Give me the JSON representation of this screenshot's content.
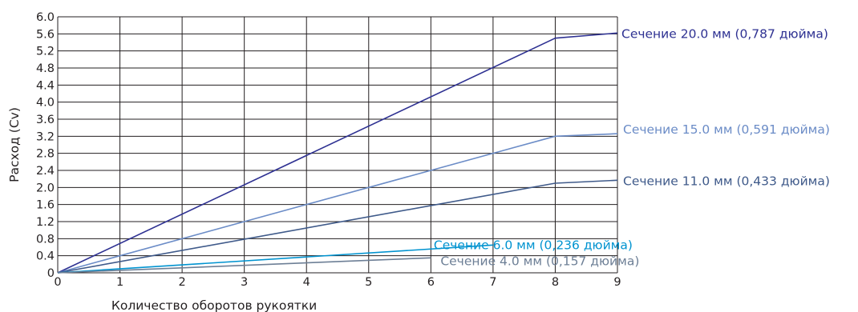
{
  "chart_data": {
    "type": "line",
    "title": "",
    "xlabel": "Количество оборотов рукоятки",
    "ylabel": "Расход (Cv)",
    "xlim": [
      0,
      9
    ],
    "ylim": [
      0,
      6.0
    ],
    "grid": true,
    "x_ticks": [
      "0",
      "1",
      "2",
      "3",
      "4",
      "5",
      "6",
      "7",
      "8",
      "9"
    ],
    "y_ticks": [
      "0",
      "0.4",
      "0.8",
      "1.2",
      "1.6",
      "2.0",
      "2.4",
      "2.8",
      "3.2",
      "3.6",
      "4.0",
      "4.4",
      "4.8",
      "5.2",
      "5.6",
      "6.0"
    ],
    "series": [
      {
        "name": "Сечение 20.0 мм (0,787 дюйма)",
        "color": "#2e3192",
        "x": [
          0,
          8,
          9
        ],
        "y": [
          0,
          5.5,
          5.62
        ]
      },
      {
        "name": "Сечение 15.0 мм (0,591 дюйма)",
        "color": "#6b8cc7",
        "x": [
          0,
          8,
          9
        ],
        "y": [
          0,
          3.2,
          3.26
        ]
      },
      {
        "name": "Сечение 11.0 мм (0,433 дюйма)",
        "color": "#3f5a8a",
        "x": [
          0,
          8,
          9
        ],
        "y": [
          0,
          2.1,
          2.17
        ]
      },
      {
        "name": "Сечение 6.0 мм (0,236 дюйма)",
        "color": "#0093d0",
        "x": [
          0,
          7
        ],
        "y": [
          0,
          0.65
        ]
      },
      {
        "name": "Сечение 4.0 мм (0,157 дюйма)",
        "color": "#6d7f96",
        "x": [
          0,
          6
        ],
        "y": [
          0,
          0.35
        ]
      }
    ]
  }
}
